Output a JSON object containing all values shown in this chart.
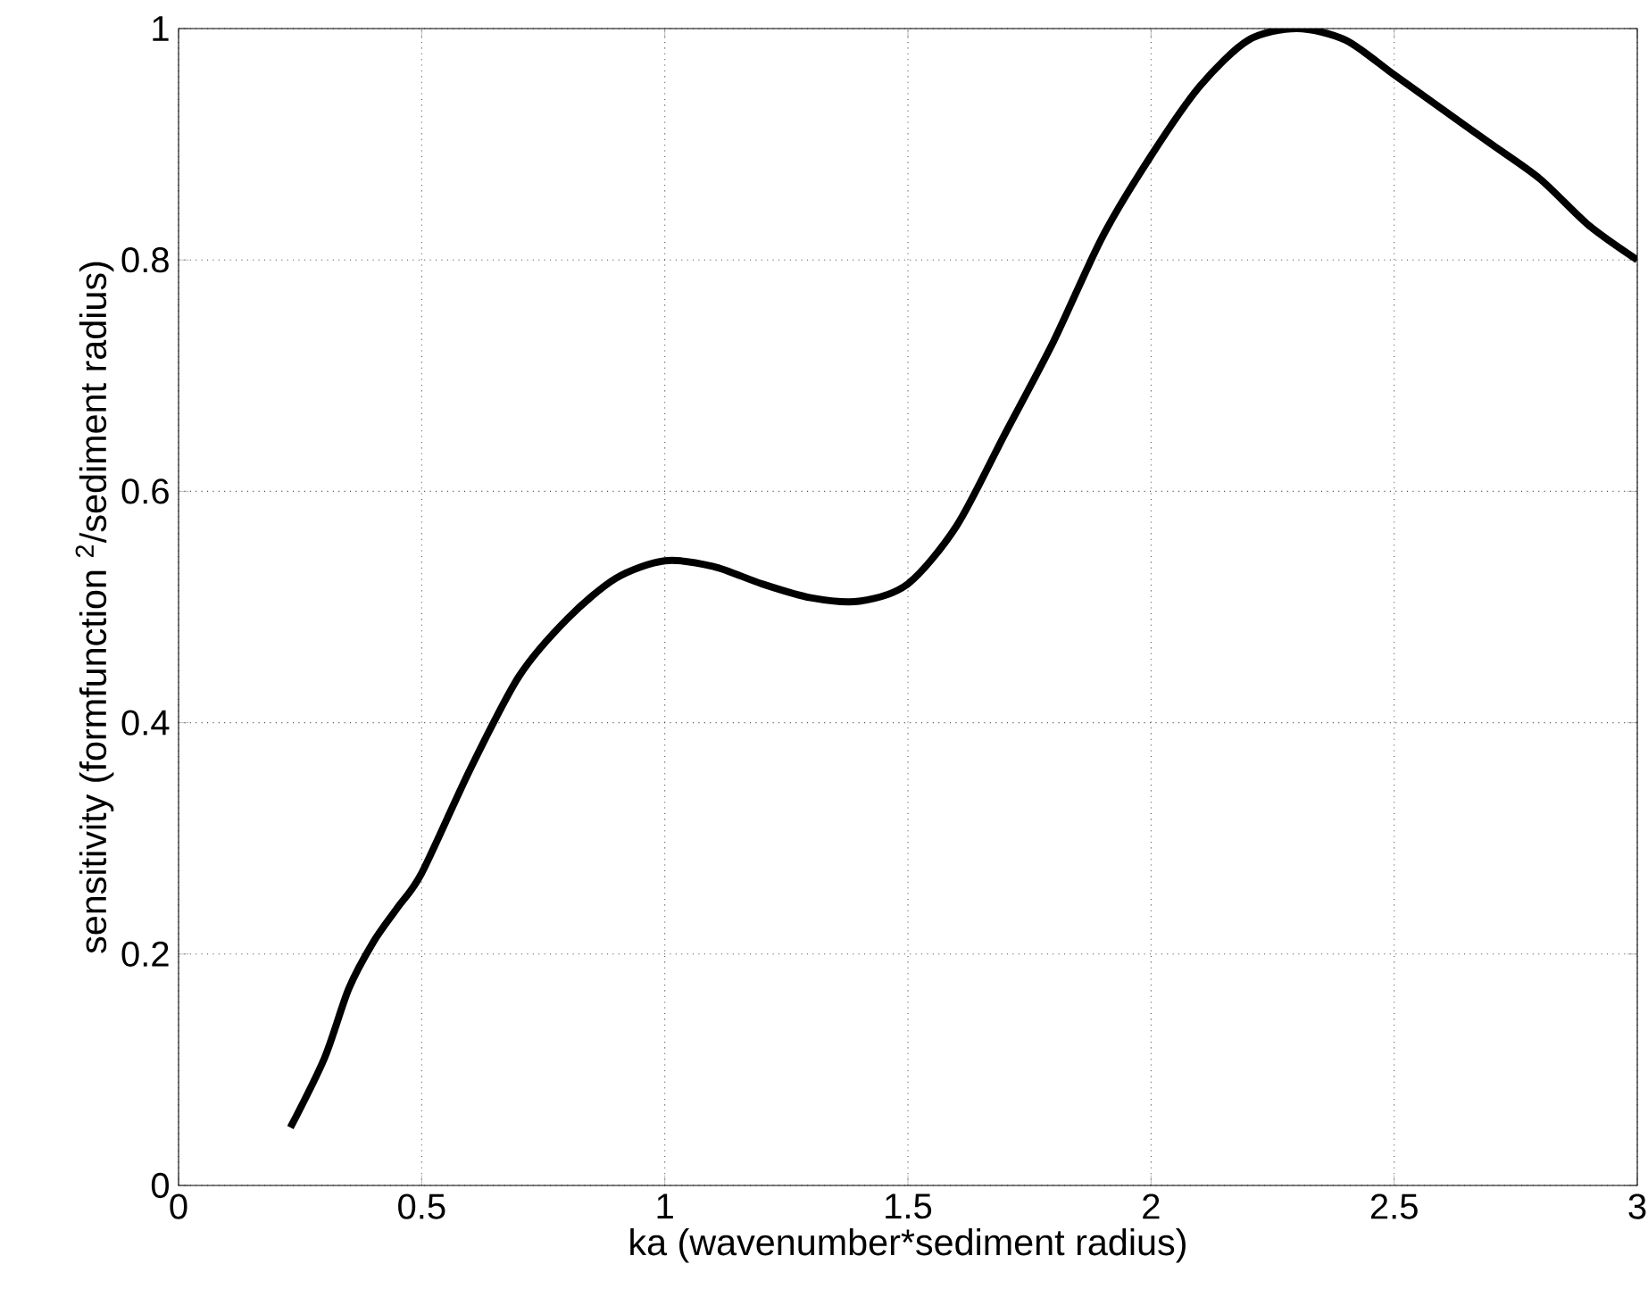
{
  "chart_data": {
    "type": "line",
    "xlabel": "ka (wavenumber*sediment radius)",
    "ylabel": "sensitivity (formfunction $^{2}$/sediment radius)",
    "x": [
      0.23,
      0.3,
      0.35,
      0.4,
      0.45,
      0.5,
      0.6,
      0.7,
      0.8,
      0.9,
      1.0,
      1.1,
      1.2,
      1.3,
      1.4,
      1.5,
      1.6,
      1.7,
      1.8,
      1.9,
      2.0,
      2.1,
      2.2,
      2.3,
      2.4,
      2.5,
      2.6,
      2.7,
      2.8,
      2.9,
      3.0
    ],
    "values": [
      0.05,
      0.11,
      0.17,
      0.21,
      0.24,
      0.27,
      0.36,
      0.44,
      0.49,
      0.525,
      0.54,
      0.535,
      0.52,
      0.508,
      0.505,
      0.52,
      0.57,
      0.65,
      0.73,
      0.82,
      0.89,
      0.95,
      0.99,
      1.0,
      0.99,
      0.96,
      0.93,
      0.9,
      0.87,
      0.83,
      0.8
    ],
    "color": "#000000",
    "xlim": [
      0,
      3
    ],
    "ylim": [
      0,
      1
    ],
    "xticks": [
      0,
      0.5,
      1,
      1.5,
      2,
      2.5,
      3
    ],
    "yticks": [
      0,
      0.2,
      0.4,
      0.6,
      0.8,
      1
    ],
    "grid": true
  }
}
